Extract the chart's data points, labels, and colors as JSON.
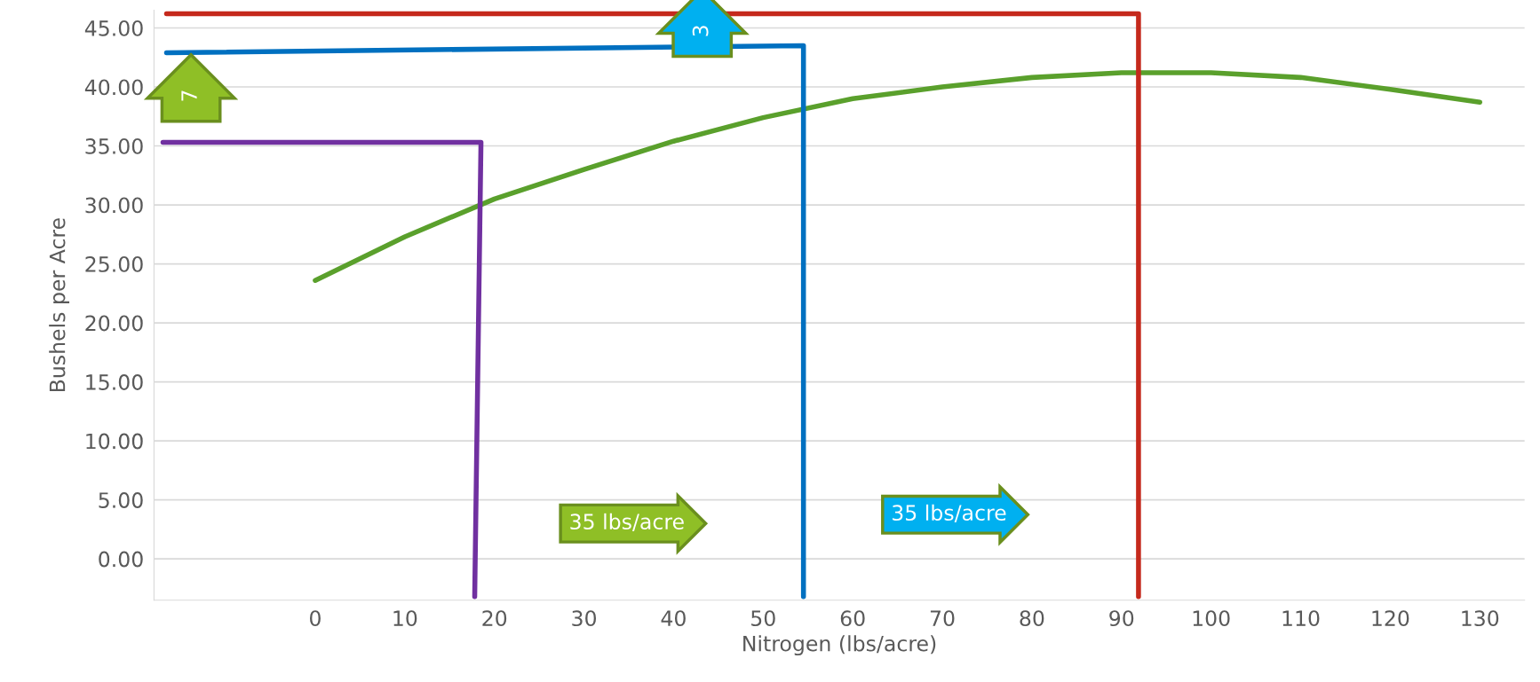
{
  "chart_data": {
    "type": "line",
    "xlabel": "Nitrogen (lbs/acre)",
    "ylabel": "Bushels per Acre",
    "x": [
      0,
      10,
      20,
      30,
      40,
      50,
      60,
      70,
      80,
      90,
      100,
      110,
      120,
      130
    ],
    "series": [
      {
        "color": "#5aa02c",
        "values": [
          23.6,
          27.3,
          30.5,
          33.0,
          35.4,
          37.4,
          39.0,
          40.0,
          40.8,
          41.2,
          41.2,
          40.8,
          39.8,
          38.7
        ]
      },
      {
        "color": "#7030a0",
        "x": [
          -17,
          18.5,
          17.8
        ],
        "values": [
          35.3,
          35.3,
          -3.2
        ]
      },
      {
        "color": "#0070c0",
        "x": [
          -16.6,
          54.5,
          54.5
        ],
        "values": [
          42.9,
          43.5,
          -3.2
        ]
      },
      {
        "color": "#c5291c",
        "x": [
          -16.6,
          91.9,
          91.9
        ],
        "values": [
          46.2,
          46.2,
          -3.2
        ]
      }
    ],
    "xlim": [
      -18,
      135
    ],
    "xticks": [
      0,
      10,
      20,
      30,
      40,
      50,
      60,
      70,
      80,
      90,
      100,
      110,
      120,
      130
    ],
    "ylim": [
      -3.5,
      46.5
    ],
    "yticks": [
      {
        "value": 0,
        "label": "0.00"
      },
      {
        "value": 5,
        "label": "5.00"
      },
      {
        "value": 10,
        "label": "10.00"
      },
      {
        "value": 15,
        "label": "15.00"
      },
      {
        "value": 20,
        "label": "20.00"
      },
      {
        "value": 25,
        "label": "25.00"
      },
      {
        "value": 30,
        "label": "30.00"
      },
      {
        "value": 35,
        "label": "35.00"
      },
      {
        "value": 40,
        "label": "40.00"
      },
      {
        "value": 45,
        "label": "45.00"
      }
    ],
    "grid": "y",
    "marker": "none",
    "line_style": "solid",
    "annotations": [
      "7",
      "3",
      "35 lbs/acre",
      "35 lbs/acre"
    ]
  }
}
